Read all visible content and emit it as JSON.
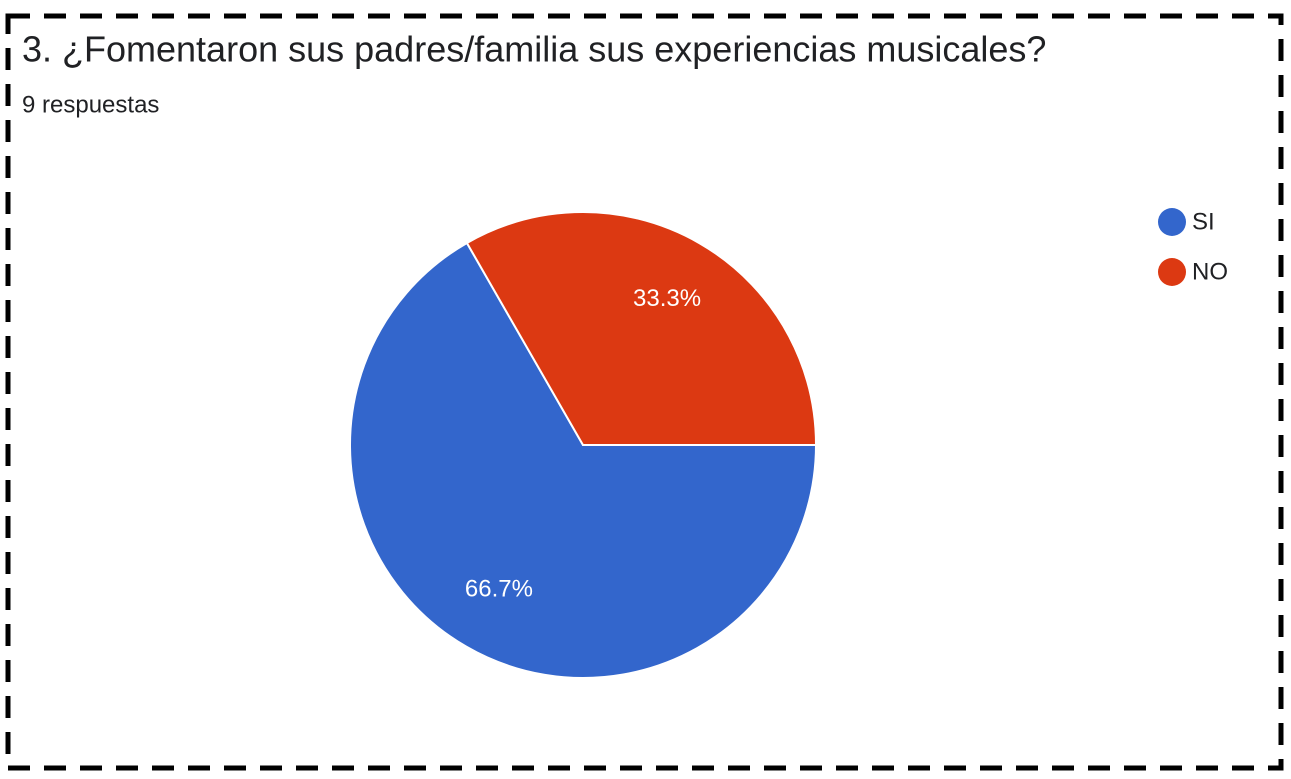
{
  "chart_data": {
    "type": "pie",
    "title": "3. ¿Fomentaron sus padres/familia sus experiencias musicales?",
    "subtitle": "9 respuestas",
    "categories": [
      "SI",
      "NO"
    ],
    "values": [
      66.7,
      33.3
    ],
    "value_labels": [
      "66.7%",
      "33.3%"
    ],
    "colors": [
      "#3366cc",
      "#dc3912"
    ],
    "legend": "right"
  }
}
